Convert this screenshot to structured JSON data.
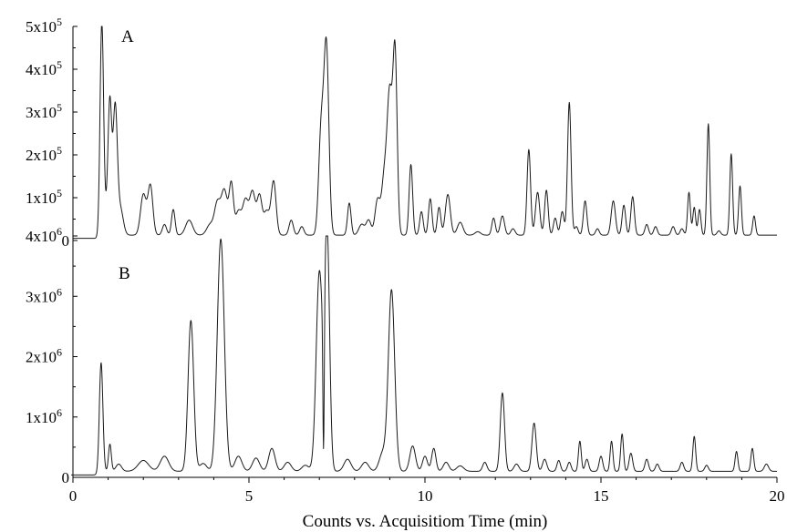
{
  "chart_data": [
    {
      "type": "line",
      "panel": "A",
      "xlabel": "",
      "ylabel": "",
      "xlim": [
        0,
        20
      ],
      "ylim": [
        0,
        500000
      ],
      "grid": false,
      "y_ticks": [
        {
          "value": 0,
          "label": "0"
        },
        {
          "value": 100000,
          "label": "1x10",
          "exp": "5"
        },
        {
          "value": 200000,
          "label": "2x10",
          "exp": "5"
        },
        {
          "value": 300000,
          "label": "3x10",
          "exp": "5"
        },
        {
          "value": 400000,
          "label": "4x10",
          "exp": "5"
        },
        {
          "value": 500000,
          "label": "5x10",
          "exp": "5"
        }
      ],
      "baseline": 5000,
      "peaks": [
        [
          0.82,
          495000,
          0.05
        ],
        [
          1.0,
          70000,
          0.08
        ],
        [
          1.05,
          255000,
          0.05
        ],
        [
          1.2,
          295000,
          0.06
        ],
        [
          1.35,
          60000,
          0.08
        ],
        [
          2.0,
          95000,
          0.08
        ],
        [
          2.2,
          115000,
          0.07
        ],
        [
          2.6,
          25000,
          0.06
        ],
        [
          2.85,
          60000,
          0.05
        ],
        [
          3.3,
          35000,
          0.1
        ],
        [
          3.9,
          25000,
          0.1
        ],
        [
          4.1,
          70000,
          0.08
        ],
        [
          4.3,
          105000,
          0.09
        ],
        [
          4.5,
          115000,
          0.06
        ],
        [
          4.7,
          55000,
          0.08
        ],
        [
          4.9,
          80000,
          0.08
        ],
        [
          5.1,
          100000,
          0.08
        ],
        [
          5.3,
          90000,
          0.07
        ],
        [
          5.7,
          125000,
          0.07
        ],
        [
          5.5,
          55000,
          0.08
        ],
        [
          6.2,
          35000,
          0.06
        ],
        [
          6.5,
          20000,
          0.06
        ],
        [
          7.05,
          240000,
          0.07
        ],
        [
          7.2,
          435000,
          0.07
        ],
        [
          7.85,
          75000,
          0.05
        ],
        [
          8.2,
          25000,
          0.08
        ],
        [
          8.4,
          35000,
          0.07
        ],
        [
          8.65,
          80000,
          0.07
        ],
        [
          8.85,
          140000,
          0.08
        ],
        [
          9.0,
          310000,
          0.07
        ],
        [
          9.15,
          420000,
          0.06
        ],
        [
          9.6,
          165000,
          0.05
        ],
        [
          9.9,
          55000,
          0.05
        ],
        [
          10.15,
          85000,
          0.05
        ],
        [
          10.4,
          65000,
          0.05
        ],
        [
          10.65,
          95000,
          0.07
        ],
        [
          11.0,
          30000,
          0.08
        ],
        [
          11.5,
          8000,
          0.08
        ],
        [
          11.95,
          40000,
          0.05
        ],
        [
          12.2,
          45000,
          0.06
        ],
        [
          12.5,
          15000,
          0.06
        ],
        [
          12.95,
          200000,
          0.05
        ],
        [
          13.2,
          100000,
          0.06
        ],
        [
          13.45,
          105000,
          0.05
        ],
        [
          13.7,
          40000,
          0.05
        ],
        [
          13.9,
          55000,
          0.05
        ],
        [
          14.1,
          310000,
          0.05
        ],
        [
          14.3,
          20000,
          0.05
        ],
        [
          14.55,
          80000,
          0.05
        ],
        [
          14.9,
          15000,
          0.05
        ],
        [
          15.35,
          80000,
          0.06
        ],
        [
          15.65,
          70000,
          0.05
        ],
        [
          15.9,
          90000,
          0.05
        ],
        [
          16.3,
          25000,
          0.05
        ],
        [
          16.55,
          20000,
          0.05
        ],
        [
          17.05,
          20000,
          0.05
        ],
        [
          17.3,
          15000,
          0.05
        ],
        [
          17.5,
          100000,
          0.04
        ],
        [
          17.65,
          65000,
          0.04
        ],
        [
          17.8,
          60000,
          0.04
        ],
        [
          18.05,
          260000,
          0.04
        ],
        [
          18.35,
          10000,
          0.05
        ],
        [
          18.7,
          190000,
          0.04
        ],
        [
          18.95,
          115000,
          0.04
        ],
        [
          19.35,
          45000,
          0.04
        ]
      ],
      "x_start": 0,
      "x_end": 20
    },
    {
      "type": "line",
      "panel": "B",
      "xlabel": "Counts vs. Acquisitiom Time (min)",
      "ylabel": "",
      "xlim": [
        0,
        20
      ],
      "ylim": [
        0,
        4000000
      ],
      "grid": false,
      "x_ticks": [
        {
          "value": 0,
          "label": "0"
        },
        {
          "value": 5,
          "label": "5"
        },
        {
          "value": 10,
          "label": "10"
        },
        {
          "value": 15,
          "label": "15"
        },
        {
          "value": 20,
          "label": "20"
        }
      ],
      "y_ticks": [
        {
          "value": 0,
          "label": "0"
        },
        {
          "value": 1000000,
          "label": "1x10",
          "exp": "6"
        },
        {
          "value": 2000000,
          "label": "2x10",
          "exp": "6"
        },
        {
          "value": 3000000,
          "label": "3x10",
          "exp": "6"
        },
        {
          "value": 4000000,
          "label": "4x10",
          "exp": "6"
        }
      ],
      "baseline": 40000,
      "peaks": [
        [
          0.8,
          1800000,
          0.05
        ],
        [
          1.05,
          450000,
          0.04
        ],
        [
          1.3,
          120000,
          0.08
        ],
        [
          2.0,
          180000,
          0.15
        ],
        [
          2.6,
          250000,
          0.12
        ],
        [
          3.35,
          2500000,
          0.08
        ],
        [
          3.7,
          130000,
          0.1
        ],
        [
          4.2,
          3850000,
          0.1
        ],
        [
          4.7,
          250000,
          0.1
        ],
        [
          5.2,
          220000,
          0.1
        ],
        [
          5.65,
          380000,
          0.09
        ],
        [
          6.1,
          150000,
          0.1
        ],
        [
          6.6,
          100000,
          0.1
        ],
        [
          7.0,
          3300000,
          0.09
        ],
        [
          7.22,
          3950000,
          0.07
        ],
        [
          7.12,
          -2400000,
          0.02
        ],
        [
          7.8,
          200000,
          0.1
        ],
        [
          8.3,
          150000,
          0.1
        ],
        [
          8.8,
          300000,
          0.1
        ],
        [
          9.05,
          3000000,
          0.09
        ],
        [
          9.65,
          420000,
          0.08
        ],
        [
          10.0,
          250000,
          0.07
        ],
        [
          10.25,
          380000,
          0.06
        ],
        [
          10.6,
          150000,
          0.08
        ],
        [
          11.0,
          90000,
          0.1
        ],
        [
          11.7,
          150000,
          0.06
        ],
        [
          12.2,
          1300000,
          0.06
        ],
        [
          12.6,
          120000,
          0.07
        ],
        [
          13.1,
          800000,
          0.06
        ],
        [
          13.4,
          200000,
          0.06
        ],
        [
          13.8,
          180000,
          0.05
        ],
        [
          14.1,
          150000,
          0.05
        ],
        [
          14.4,
          500000,
          0.04
        ],
        [
          14.6,
          200000,
          0.05
        ],
        [
          15.0,
          250000,
          0.05
        ],
        [
          15.3,
          500000,
          0.04
        ],
        [
          15.6,
          620000,
          0.04
        ],
        [
          15.85,
          300000,
          0.05
        ],
        [
          16.3,
          200000,
          0.05
        ],
        [
          16.6,
          120000,
          0.05
        ],
        [
          17.3,
          150000,
          0.05
        ],
        [
          17.65,
          580000,
          0.04
        ],
        [
          18.0,
          100000,
          0.05
        ],
        [
          18.85,
          330000,
          0.04
        ],
        [
          19.3,
          380000,
          0.04
        ],
        [
          19.7,
          120000,
          0.06
        ]
      ],
      "x_start": -0.05,
      "x_end": 20
    }
  ],
  "panels": {
    "a_label": "A",
    "b_label": "B"
  }
}
